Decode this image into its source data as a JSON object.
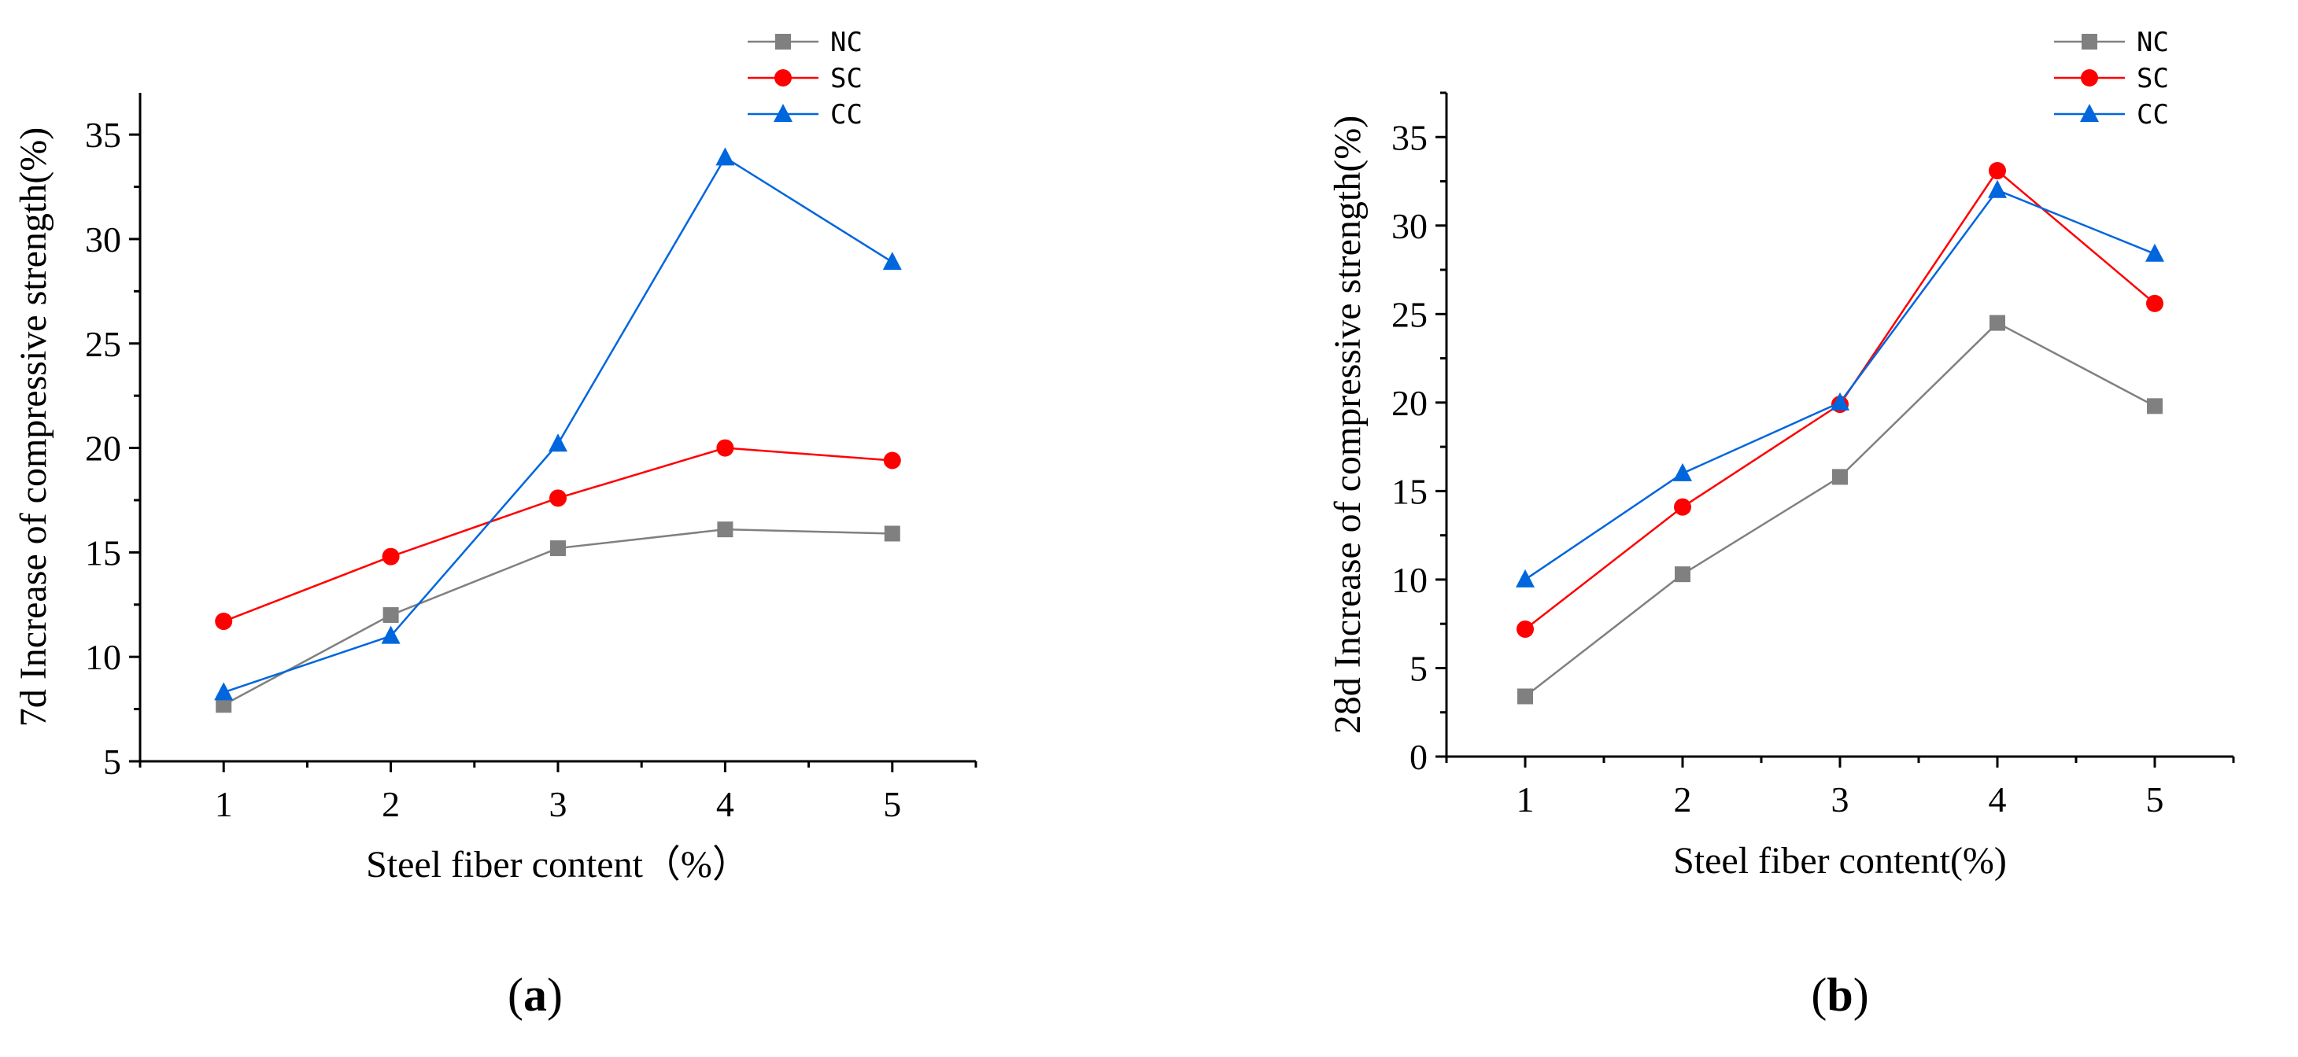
{
  "chart_data": [
    {
      "type": "line",
      "panel_label": "a",
      "xlabel": "Steel fiber content（%）",
      "ylabel": "7d Increase of compressive strength(%)",
      "x": [
        1,
        2,
        3,
        4,
        5
      ],
      "xlim": [
        0.5,
        5.5
      ],
      "ylim": [
        5,
        37
      ],
      "yticks": [
        5,
        10,
        15,
        20,
        25,
        30,
        35
      ],
      "series": [
        {
          "name": "NC",
          "color": "#808080",
          "marker": "square",
          "values": [
            7.7,
            12.0,
            15.2,
            16.1,
            15.9
          ]
        },
        {
          "name": "SC",
          "color": "#ff0000",
          "marker": "circle",
          "values": [
            11.7,
            14.8,
            17.6,
            20.0,
            19.4
          ]
        },
        {
          "name": "CC",
          "color": "#0066dd",
          "marker": "triangle",
          "values": [
            8.3,
            11.0,
            20.2,
            33.9,
            28.9
          ]
        }
      ]
    },
    {
      "type": "line",
      "panel_label": "b",
      "xlabel": "Steel fiber content(%)",
      "ylabel": "28d Increase of compressive strength(%)",
      "x": [
        1,
        2,
        3,
        4,
        5
      ],
      "xlim": [
        0.5,
        5.5
      ],
      "ylim": [
        0,
        37.5
      ],
      "yticks": [
        0,
        5,
        10,
        15,
        20,
        25,
        30,
        35
      ],
      "series": [
        {
          "name": "NC",
          "color": "#808080",
          "marker": "square",
          "values": [
            3.4,
            10.3,
            15.8,
            24.5,
            19.8
          ]
        },
        {
          "name": "SC",
          "color": "#ff0000",
          "marker": "circle",
          "values": [
            7.2,
            14.1,
            19.9,
            33.1,
            25.6
          ]
        },
        {
          "name": "CC",
          "color": "#0066dd",
          "marker": "triangle",
          "values": [
            10.0,
            16.0,
            20.0,
            32.0,
            28.4
          ]
        }
      ]
    }
  ]
}
